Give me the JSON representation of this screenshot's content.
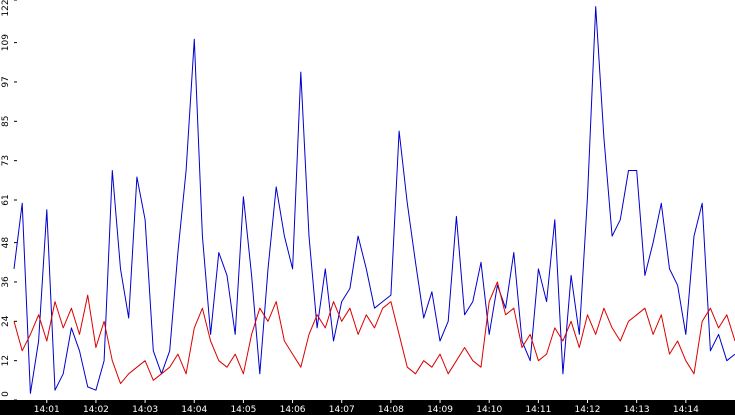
{
  "chart_data": {
    "type": "line",
    "title": "",
    "xlabel": "",
    "ylabel": "",
    "ylim": [
      0,
      122
    ],
    "xlim": [
      "14:00:20",
      "14:15:00"
    ],
    "grid": false,
    "y_ticks": [
      "0",
      "12",
      "24",
      "36",
      "48",
      "61",
      "73",
      "85",
      "97",
      "109",
      "122"
    ],
    "x_ticks": [
      "14:01",
      "14:02",
      "14:03",
      "14:04",
      "14:05",
      "14:06",
      "14:07",
      "14:08",
      "14:09",
      "14:10",
      "14:11",
      "14:12",
      "14:13",
      "14:14"
    ],
    "x_axis_background": "#000000",
    "plot_background": "#ffffff",
    "series": [
      {
        "color": "#0000cc",
        "x": [
          "14:00:20",
          "14:00:30",
          "14:00:40",
          "14:00:50",
          "14:01:00",
          "14:01:10",
          "14:01:20",
          "14:01:30",
          "14:01:40",
          "14:01:50",
          "14:02:00",
          "14:02:10",
          "14:02:20",
          "14:02:30",
          "14:02:40",
          "14:02:50",
          "14:03:00",
          "14:03:10",
          "14:03:20",
          "14:03:30",
          "14:03:40",
          "14:03:50",
          "14:04:00",
          "14:04:10",
          "14:04:20",
          "14:04:30",
          "14:04:40",
          "14:04:50",
          "14:05:00",
          "14:05:10",
          "14:05:20",
          "14:05:30",
          "14:05:40",
          "14:05:50",
          "14:06:00",
          "14:06:10",
          "14:06:20",
          "14:06:30",
          "14:06:40",
          "14:06:50",
          "14:07:00",
          "14:07:10",
          "14:07:20",
          "14:07:30",
          "14:07:40",
          "14:07:50",
          "14:08:00",
          "14:08:10",
          "14:08:20",
          "14:08:30",
          "14:08:40",
          "14:08:50",
          "14:09:00",
          "14:09:10",
          "14:09:20",
          "14:09:30",
          "14:09:40",
          "14:09:50",
          "14:10:00",
          "14:10:10",
          "14:10:20",
          "14:10:30",
          "14:10:40",
          "14:10:50",
          "14:11:00",
          "14:11:10",
          "14:11:20",
          "14:11:30",
          "14:11:40",
          "14:11:50",
          "14:12:00",
          "14:12:10",
          "14:12:20",
          "14:12:30",
          "14:12:40",
          "14:12:50",
          "14:13:00",
          "14:13:10",
          "14:13:20",
          "14:13:30",
          "14:13:40",
          "14:13:50",
          "14:14:00",
          "14:14:10",
          "14:14:20",
          "14:14:30",
          "14:14:40",
          "14:14:50",
          "14:15:00"
        ],
        "values": [
          40,
          60,
          2,
          18,
          58,
          3,
          8,
          22,
          15,
          4,
          3,
          12,
          70,
          40,
          25,
          68,
          55,
          15,
          8,
          15,
          45,
          70,
          110,
          50,
          20,
          45,
          38,
          20,
          62,
          38,
          8,
          40,
          65,
          50,
          40,
          100,
          50,
          22,
          40,
          18,
          30,
          34,
          50,
          40,
          28,
          30,
          32,
          82,
          60,
          42,
          25,
          33,
          18,
          24,
          56,
          26,
          30,
          42,
          20,
          35,
          28,
          45,
          18,
          12,
          40,
          30,
          55,
          8,
          38,
          20,
          62,
          120,
          80,
          50,
          55,
          70,
          70,
          38,
          48,
          60,
          40,
          35,
          20,
          50,
          60,
          15,
          20,
          12,
          14
        ]
      },
      {
        "color": "#dd0000",
        "x": [
          "14:00:20",
          "14:00:30",
          "14:00:40",
          "14:00:50",
          "14:01:00",
          "14:01:10",
          "14:01:20",
          "14:01:30",
          "14:01:40",
          "14:01:50",
          "14:02:00",
          "14:02:10",
          "14:02:20",
          "14:02:30",
          "14:02:40",
          "14:02:50",
          "14:03:00",
          "14:03:10",
          "14:03:20",
          "14:03:30",
          "14:03:40",
          "14:03:50",
          "14:04:00",
          "14:04:10",
          "14:04:20",
          "14:04:30",
          "14:04:40",
          "14:04:50",
          "14:05:00",
          "14:05:10",
          "14:05:20",
          "14:05:30",
          "14:05:40",
          "14:05:50",
          "14:06:00",
          "14:06:10",
          "14:06:20",
          "14:06:30",
          "14:06:40",
          "14:06:50",
          "14:07:00",
          "14:07:10",
          "14:07:20",
          "14:07:30",
          "14:07:40",
          "14:07:50",
          "14:08:00",
          "14:08:10",
          "14:08:20",
          "14:08:30",
          "14:08:40",
          "14:08:50",
          "14:09:00",
          "14:09:10",
          "14:09:20",
          "14:09:30",
          "14:09:40",
          "14:09:50",
          "14:10:00",
          "14:10:10",
          "14:10:20",
          "14:10:30",
          "14:10:40",
          "14:10:50",
          "14:11:00",
          "14:11:10",
          "14:11:20",
          "14:11:30",
          "14:11:40",
          "14:11:50",
          "14:12:00",
          "14:12:10",
          "14:12:20",
          "14:12:30",
          "14:12:40",
          "14:12:50",
          "14:13:00",
          "14:13:10",
          "14:13:20",
          "14:13:30",
          "14:13:40",
          "14:13:50",
          "14:14:00",
          "14:14:10",
          "14:14:20",
          "14:14:30",
          "14:14:40",
          "14:14:50",
          "14:15:00"
        ],
        "values": [
          24,
          15,
          20,
          26,
          18,
          30,
          22,
          28,
          20,
          32,
          16,
          24,
          12,
          5,
          8,
          10,
          12,
          6,
          8,
          10,
          14,
          8,
          22,
          28,
          18,
          12,
          10,
          14,
          8,
          20,
          28,
          24,
          30,
          18,
          14,
          10,
          20,
          26,
          22,
          30,
          24,
          28,
          20,
          26,
          22,
          28,
          30,
          20,
          10,
          8,
          12,
          10,
          14,
          8,
          12,
          16,
          12,
          10,
          30,
          36,
          26,
          28,
          16,
          20,
          12,
          14,
          22,
          18,
          24,
          16,
          26,
          20,
          28,
          22,
          18,
          24,
          26,
          28,
          20,
          26,
          14,
          18,
          12,
          8,
          24,
          28,
          22,
          26,
          18
        ]
      }
    ]
  }
}
